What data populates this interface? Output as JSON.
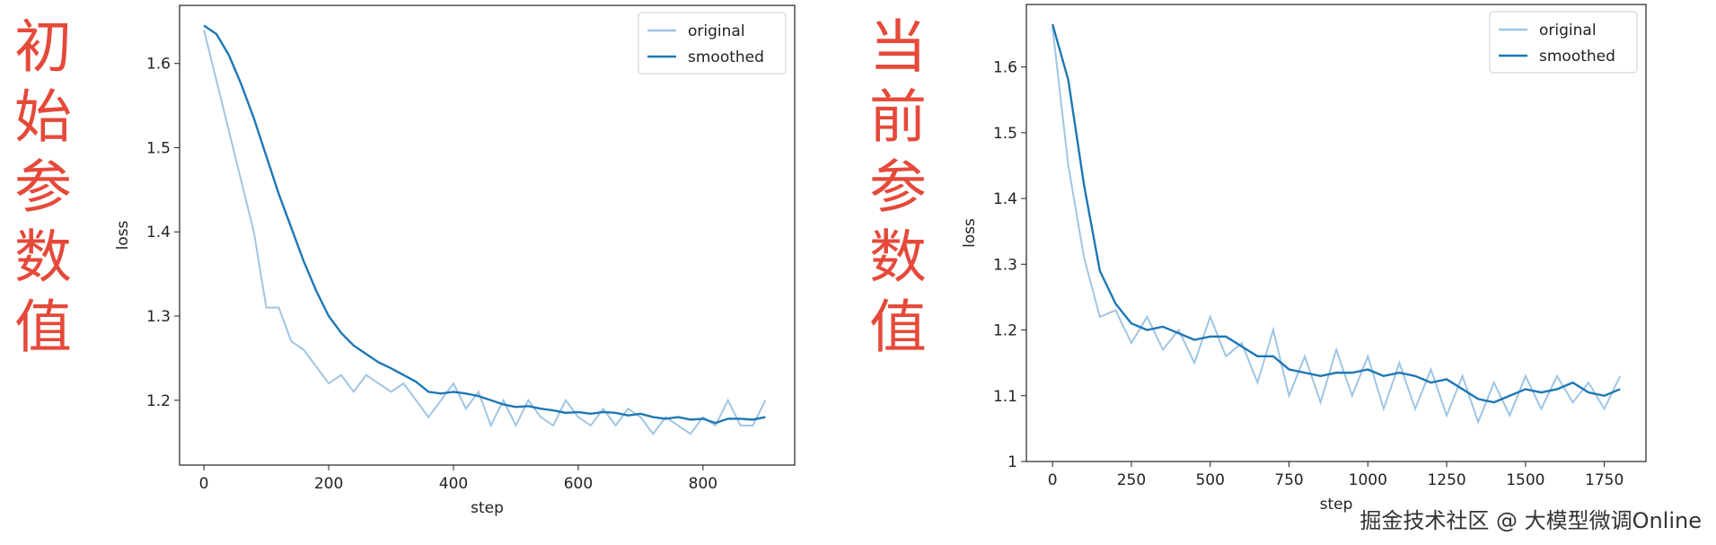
{
  "side_labels": [
    "初始参数值",
    "当前参数值"
  ],
  "watermark": "掘金技术社区 @ 大模型微调Online",
  "chart_data": [
    {
      "type": "line",
      "xlabel": "step",
      "ylabel": "loss",
      "legend": "upper right",
      "xlim": [
        -39,
        947
      ],
      "ylim": [
        1.123,
        1.669
      ],
      "xticks": [
        0,
        200,
        400,
        600,
        800
      ],
      "yticks": [
        1.2,
        1.3,
        1.4,
        1.5,
        1.6
      ],
      "x": [
        0,
        20,
        40,
        60,
        80,
        100,
        120,
        140,
        160,
        180,
        200,
        220,
        240,
        260,
        280,
        300,
        320,
        340,
        360,
        380,
        400,
        420,
        440,
        460,
        480,
        500,
        520,
        540,
        560,
        580,
        600,
        620,
        640,
        660,
        680,
        700,
        720,
        740,
        760,
        780,
        800,
        820,
        840,
        860,
        880,
        900
      ],
      "series": [
        {
          "name": "original",
          "color": "#9fc5e3",
          "values": [
            1.64,
            1.58,
            1.52,
            1.46,
            1.4,
            1.31,
            1.31,
            1.27,
            1.26,
            1.24,
            1.22,
            1.23,
            1.21,
            1.23,
            1.22,
            1.21,
            1.22,
            1.2,
            1.18,
            1.2,
            1.22,
            1.19,
            1.21,
            1.17,
            1.2,
            1.17,
            1.2,
            1.18,
            1.17,
            1.2,
            1.18,
            1.17,
            1.19,
            1.17,
            1.19,
            1.18,
            1.16,
            1.18,
            1.17,
            1.16,
            1.18,
            1.17,
            1.2,
            1.17,
            1.17,
            1.2
          ]
        },
        {
          "name": "smoothed",
          "color": "#1f77b4",
          "values": [
            1.645,
            1.635,
            1.61,
            1.575,
            1.535,
            1.49,
            1.445,
            1.405,
            1.365,
            1.33,
            1.3,
            1.28,
            1.265,
            1.255,
            1.245,
            1.238,
            1.23,
            1.222,
            1.21,
            1.208,
            1.21,
            1.208,
            1.205,
            1.2,
            1.195,
            1.192,
            1.193,
            1.19,
            1.188,
            1.185,
            1.186,
            1.184,
            1.186,
            1.185,
            1.182,
            1.184,
            1.18,
            1.178,
            1.18,
            1.177,
            1.178,
            1.173,
            1.178,
            1.178,
            1.177,
            1.18
          ]
        }
      ]
    },
    {
      "type": "line",
      "xlabel": "step",
      "ylabel": "loss",
      "legend": "upper right",
      "xlim": [
        -83,
        1882
      ],
      "ylim": [
        1.0,
        1.695
      ],
      "xticks": [
        0,
        250,
        500,
        750,
        1000,
        1250,
        1500,
        1750
      ],
      "yticks": [
        1.0,
        1.1,
        1.2,
        1.3,
        1.4,
        1.5,
        1.6
      ],
      "x": [
        0,
        50,
        100,
        150,
        200,
        250,
        300,
        350,
        400,
        450,
        500,
        550,
        600,
        650,
        700,
        750,
        800,
        850,
        900,
        950,
        1000,
        1050,
        1100,
        1150,
        1200,
        1250,
        1300,
        1350,
        1400,
        1450,
        1500,
        1550,
        1600,
        1650,
        1700,
        1750,
        1800
      ],
      "series": [
        {
          "name": "original",
          "color": "#9fc5e3",
          "values": [
            1.66,
            1.45,
            1.31,
            1.22,
            1.23,
            1.18,
            1.22,
            1.17,
            1.2,
            1.15,
            1.22,
            1.16,
            1.18,
            1.12,
            1.2,
            1.1,
            1.16,
            1.09,
            1.17,
            1.1,
            1.16,
            1.08,
            1.15,
            1.08,
            1.14,
            1.07,
            1.13,
            1.06,
            1.12,
            1.07,
            1.13,
            1.08,
            1.13,
            1.09,
            1.12,
            1.08,
            1.13
          ]
        },
        {
          "name": "smoothed",
          "color": "#1f77b4",
          "values": [
            1.665,
            1.58,
            1.42,
            1.29,
            1.24,
            1.21,
            1.2,
            1.205,
            1.195,
            1.185,
            1.19,
            1.19,
            1.175,
            1.16,
            1.16,
            1.14,
            1.135,
            1.13,
            1.135,
            1.135,
            1.14,
            1.13,
            1.135,
            1.13,
            1.12,
            1.125,
            1.11,
            1.095,
            1.09,
            1.1,
            1.11,
            1.105,
            1.11,
            1.12,
            1.105,
            1.1,
            1.11
          ]
        }
      ]
    }
  ]
}
